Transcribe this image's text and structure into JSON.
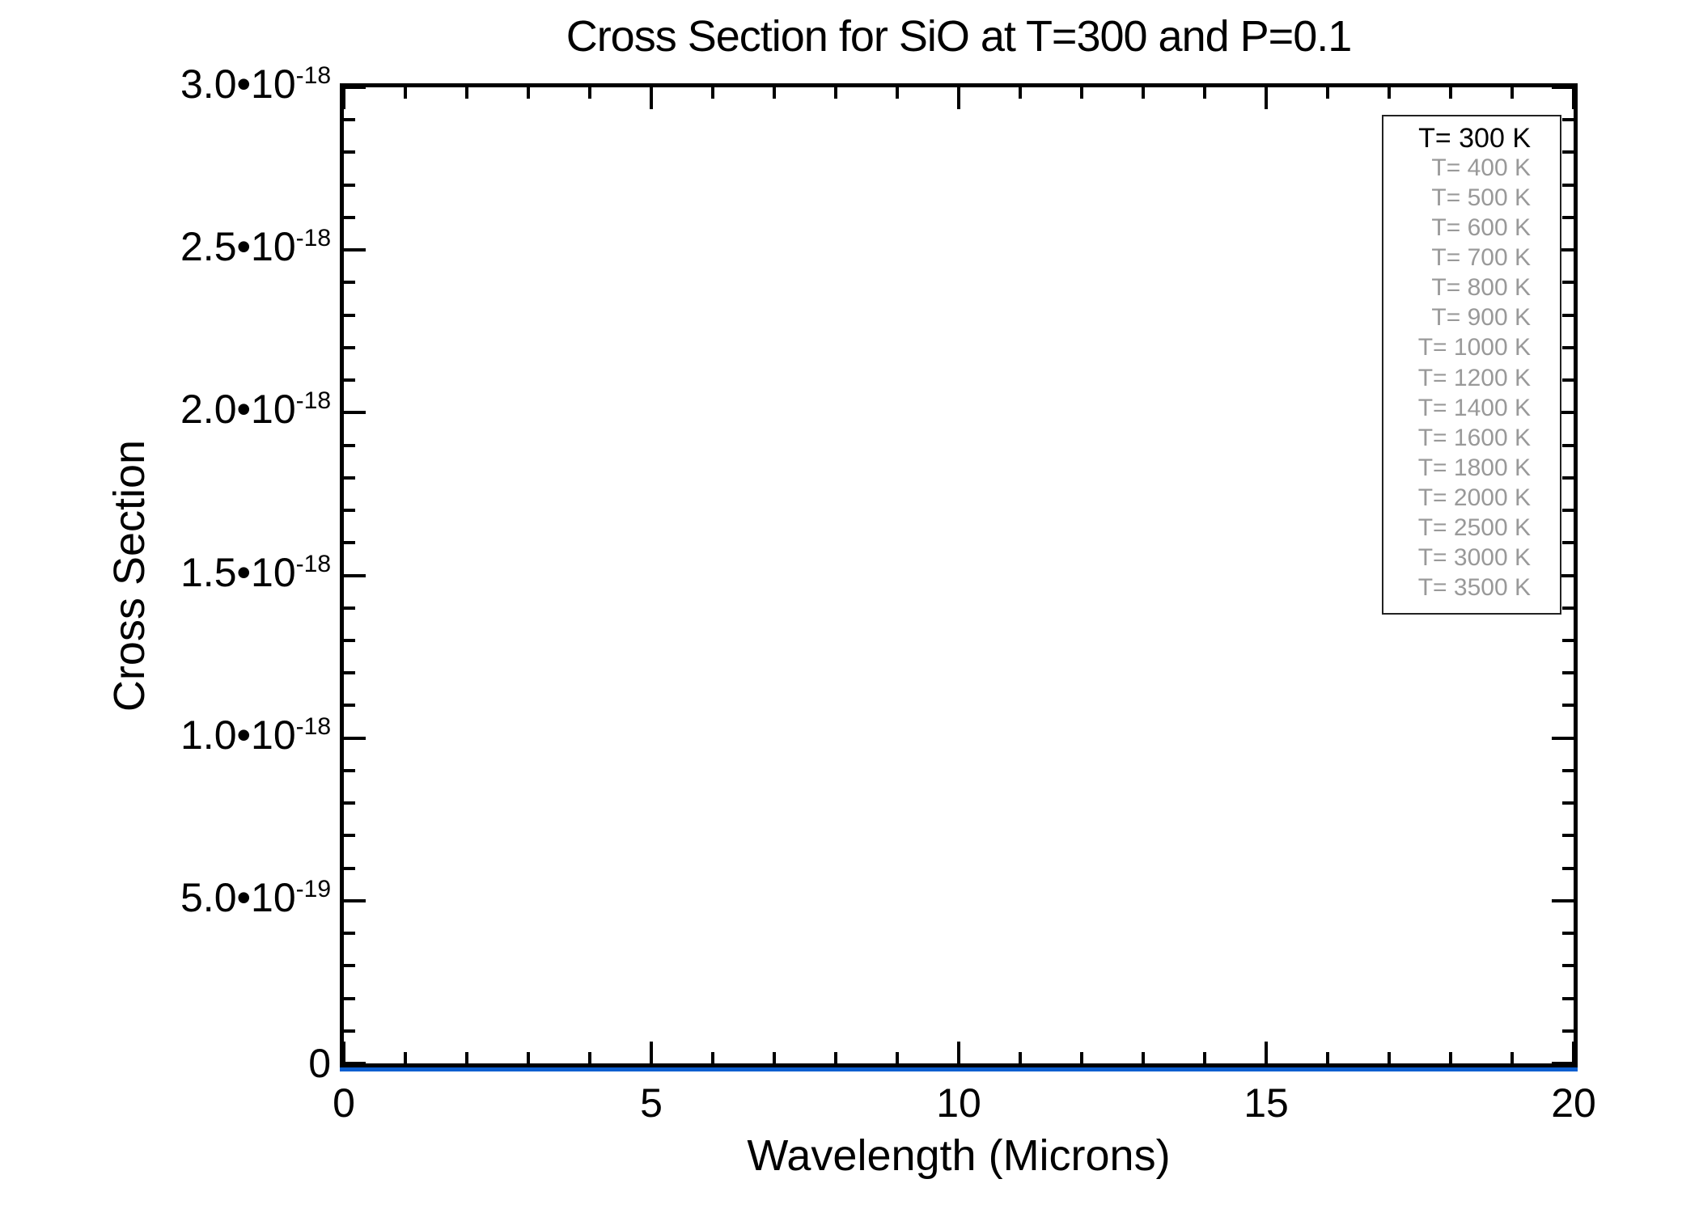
{
  "title": "Cross Section for SiO at T=300 and P=0.1",
  "colors": {
    "axis": "#000000",
    "series_blue": "#0d5fd0",
    "legend_gray": "#999999",
    "legend_black": "#000000"
  },
  "axes": {
    "x": {
      "label": "Wavelength (Microns)",
      "min": 0,
      "max": 20,
      "major_step": 5,
      "minor_step": 1,
      "major_ticks": [
        {
          "value": 0,
          "label": "0"
        },
        {
          "value": 5,
          "label": "5"
        },
        {
          "value": 10,
          "label": "10"
        },
        {
          "value": 15,
          "label": "15"
        },
        {
          "value": 20,
          "label": "20"
        }
      ]
    },
    "y": {
      "label": "Cross Section",
      "min": 0,
      "max": 3e-18,
      "major_step": 5e-19,
      "minor_step": 1e-19,
      "major_ticks": [
        {
          "value": 3e-18,
          "m": "3.0•10",
          "e": "-18"
        },
        {
          "value": 2.5e-18,
          "m": "2.5•10",
          "e": "-18"
        },
        {
          "value": 2e-18,
          "m": "2.0•10",
          "e": "-18"
        },
        {
          "value": 1.5e-18,
          "m": "1.5•10",
          "e": "-18"
        },
        {
          "value": 1e-18,
          "m": "1.0•10",
          "e": "-18"
        },
        {
          "value": 5e-19,
          "m": "5.0•10",
          "e": "-19"
        },
        {
          "value": 0,
          "m": "0",
          "e": null
        }
      ]
    }
  },
  "legend": {
    "entries": [
      {
        "label": "T= 300 K",
        "color": "#000000"
      },
      {
        "label": "T= 400 K",
        "color": "#999999"
      },
      {
        "label": "T= 500 K",
        "color": "#999999"
      },
      {
        "label": "T= 600 K",
        "color": "#999999"
      },
      {
        "label": "T= 700 K",
        "color": "#999999"
      },
      {
        "label": "T= 800 K",
        "color": "#999999"
      },
      {
        "label": "T= 900 K",
        "color": "#999999"
      },
      {
        "label": "T= 1000 K",
        "color": "#999999"
      },
      {
        "label": "T= 1200 K",
        "color": "#999999"
      },
      {
        "label": "T= 1400 K",
        "color": "#999999"
      },
      {
        "label": "T= 1600 K",
        "color": "#999999"
      },
      {
        "label": "T= 1800 K",
        "color": "#999999"
      },
      {
        "label": "T= 2000 K",
        "color": "#999999"
      },
      {
        "label": "T= 2500 K",
        "color": "#999999"
      },
      {
        "label": "T= 3000 K",
        "color": "#999999"
      },
      {
        "label": "T= 3500 K",
        "color": "#999999"
      }
    ]
  },
  "chart_data": {
    "type": "line",
    "title": "Cross Section for SiO at T=300 and P=0.1",
    "xlabel": "Wavelength (Microns)",
    "ylabel": "Cross Section",
    "xlim": [
      0,
      20
    ],
    "ylim": [
      0,
      3e-18
    ],
    "x_major_ticks": [
      0,
      5,
      10,
      15,
      20
    ],
    "y_major_ticks": [
      0,
      5e-19,
      1e-18,
      1.5e-18,
      2e-18,
      2.5e-18,
      3e-18
    ],
    "x_minor_tick_step": 1,
    "y_minor_tick_step": 1e-19,
    "grid": false,
    "legend_position": "upper right",
    "series": [
      {
        "name": "T= 300 K",
        "color": "#0d5fd0",
        "x": [
          0,
          20
        ],
        "y": [
          0,
          0
        ],
        "note": "the only visible curve; flat at ~0 across the full wavelength range at this axis scale"
      }
    ],
    "legend_entries": [
      "T= 300 K",
      "T= 400 K",
      "T= 500 K",
      "T= 600 K",
      "T= 700 K",
      "T= 800 K",
      "T= 900 K",
      "T= 1000 K",
      "T= 1200 K",
      "T= 1400 K",
      "T= 1600 K",
      "T= 1800 K",
      "T= 2000 K",
      "T= 2500 K",
      "T= 3000 K",
      "T= 3500 K"
    ]
  }
}
